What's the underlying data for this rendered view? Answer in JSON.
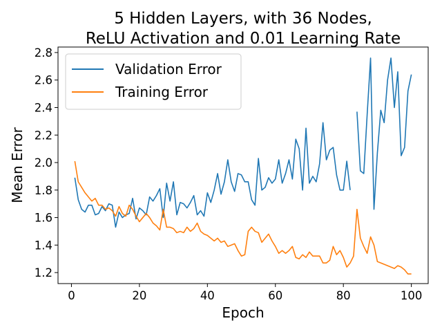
{
  "chart_data": {
    "type": "line",
    "title_lines": [
      "5 Hidden Layers, with 36 Nodes,",
      "ReLU Activation and 0.01 Learning Rate"
    ],
    "xlabel": "Epoch",
    "ylabel": "Mean Error",
    "xlim": [
      -3.95,
      104.95
    ],
    "ylim": [
      1.12,
      2.84
    ],
    "xticks": [
      0,
      20,
      40,
      60,
      80,
      100
    ],
    "yticks": [
      1.2,
      1.4,
      1.6,
      1.8,
      2.0,
      2.2,
      2.4,
      2.6,
      2.8
    ],
    "ytick_labels": [
      "1.2",
      "1.4",
      "1.6",
      "1.8",
      "2.0",
      "2.2",
      "2.4",
      "2.6",
      "2.8"
    ],
    "grid": false,
    "legend": "upper-left",
    "x": [
      1,
      2,
      3,
      4,
      5,
      6,
      7,
      8,
      9,
      10,
      11,
      12,
      13,
      14,
      15,
      16,
      17,
      18,
      19,
      20,
      21,
      22,
      23,
      24,
      25,
      26,
      27,
      28,
      29,
      30,
      31,
      32,
      33,
      34,
      35,
      36,
      37,
      38,
      39,
      40,
      41,
      42,
      43,
      44,
      45,
      46,
      47,
      48,
      49,
      50,
      51,
      52,
      53,
      54,
      55,
      56,
      57,
      58,
      59,
      60,
      61,
      62,
      63,
      64,
      65,
      66,
      67,
      68,
      69,
      70,
      71,
      72,
      73,
      74,
      75,
      76,
      77,
      78,
      79,
      80,
      81,
      82,
      83,
      84,
      85,
      86,
      87,
      88,
      89,
      90,
      91,
      92,
      93,
      94,
      95,
      96,
      97,
      98,
      99,
      100
    ],
    "series": [
      {
        "name": "Validation Error",
        "color": "#1f77b4",
        "values": [
          1.89,
          1.73,
          1.66,
          1.64,
          1.69,
          1.69,
          1.62,
          1.63,
          1.68,
          1.65,
          1.7,
          1.69,
          1.53,
          1.64,
          1.6,
          1.62,
          1.63,
          1.74,
          1.59,
          1.67,
          1.65,
          1.62,
          1.75,
          1.72,
          1.76,
          1.81,
          1.6,
          1.85,
          1.72,
          1.86,
          1.62,
          1.71,
          1.7,
          1.67,
          1.71,
          1.76,
          1.62,
          1.65,
          1.61,
          1.78,
          1.71,
          1.8,
          1.92,
          1.77,
          1.86,
          2.02,
          1.86,
          1.79,
          1.92,
          1.91,
          1.86,
          1.86,
          1.73,
          1.69,
          2.03,
          1.8,
          1.82,
          1.89,
          1.85,
          1.88,
          2.02,
          1.85,
          1.92,
          2.02,
          1.88,
          2.17,
          2.1,
          1.8,
          2.25,
          1.85,
          1.9,
          1.86,
          1.99,
          2.29,
          2.02,
          2.09,
          2.11,
          1.91,
          1.8,
          1.8,
          2.01,
          1.8,
          null,
          2.37,
          1.94,
          1.92,
          2.35,
          2.76,
          1.66,
          2.07,
          2.38,
          2.29,
          2.6,
          2.76,
          2.4,
          2.66,
          2.05,
          2.11,
          2.52,
          2.64
        ]
      },
      {
        "name": "Training Error",
        "color": "#ff7f0e",
        "values": [
          2.01,
          1.86,
          1.82,
          1.78,
          1.75,
          1.72,
          1.74,
          1.69,
          1.69,
          1.66,
          1.67,
          1.65,
          1.61,
          1.68,
          1.63,
          1.61,
          1.69,
          1.66,
          1.61,
          1.57,
          1.6,
          1.63,
          1.6,
          1.56,
          1.54,
          1.51,
          1.66,
          1.53,
          1.53,
          1.52,
          1.49,
          1.5,
          1.49,
          1.53,
          1.5,
          1.52,
          1.56,
          1.5,
          1.48,
          1.47,
          1.45,
          1.43,
          1.45,
          1.42,
          1.43,
          1.39,
          1.4,
          1.41,
          1.36,
          1.32,
          1.33,
          1.5,
          1.53,
          1.5,
          1.49,
          1.42,
          1.45,
          1.48,
          1.43,
          1.39,
          1.34,
          1.36,
          1.34,
          1.36,
          1.39,
          1.31,
          1.3,
          1.33,
          1.31,
          1.35,
          1.32,
          1.32,
          1.32,
          1.27,
          1.27,
          1.29,
          1.39,
          1.33,
          1.36,
          1.31,
          1.24,
          1.27,
          1.32,
          1.66,
          1.45,
          1.39,
          1.34,
          1.46,
          1.4,
          1.28,
          1.27,
          1.26,
          1.25,
          1.24,
          1.23,
          1.25,
          1.24,
          1.22,
          1.19,
          1.19
        ]
      }
    ]
  }
}
